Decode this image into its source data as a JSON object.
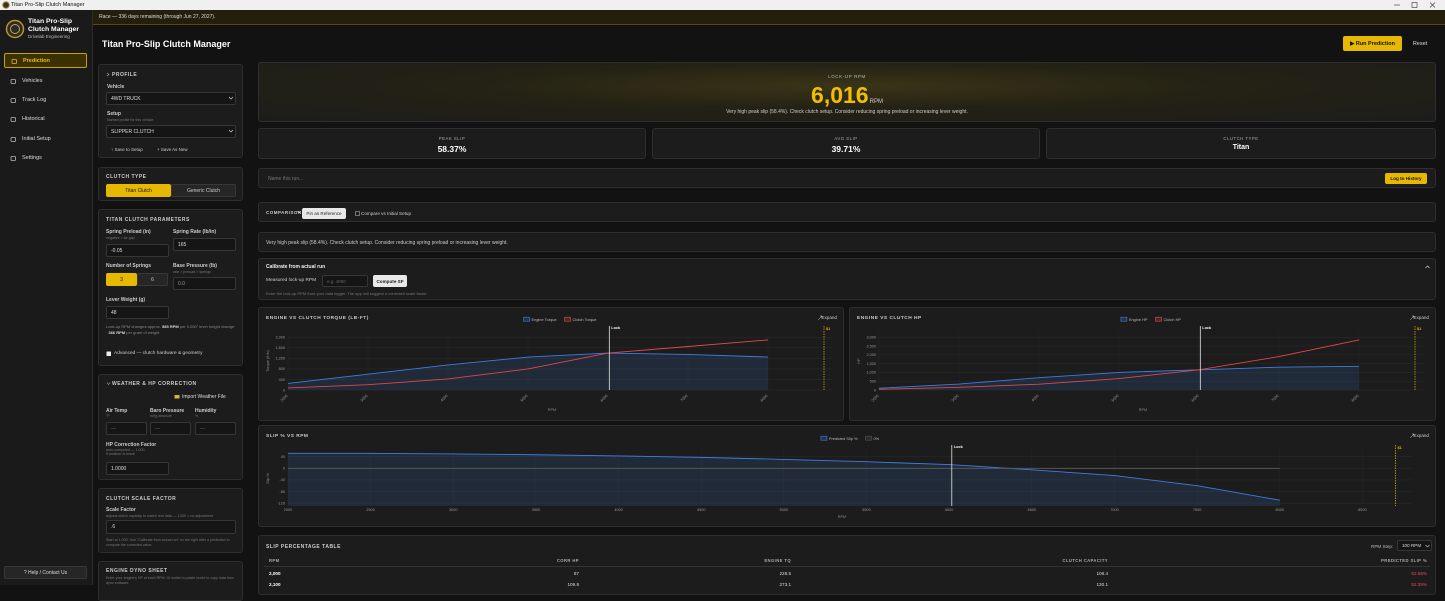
{
  "window_title": "Titan Pro-Slip Clutch Manager",
  "sidebar": {
    "app_name": "Titan Pro-Slip Clutch Manager",
    "subtitle": "Drivelab Engineering",
    "nav": [
      "Prediction",
      "Vehicles",
      "Track Log",
      "Historical",
      "Initial Setup",
      "Settings"
    ],
    "help": "? Help / Contact Us"
  },
  "banner": "Race — 336 days remaining (through Jun 27, 2027).",
  "header": {
    "title": "Titan Pro-Slip Clutch Manager",
    "run_button": "▶ Run Prediction",
    "reset_button": "Reset"
  },
  "profile": {
    "heading": "PROFILE",
    "vehicle_label": "Vehicle",
    "vehicle_value": "4WD TRUCK",
    "setup_label": "Setup",
    "setup_hint": "Named profile for this vehicle",
    "setup_value": "SLIPPER CLUTCH",
    "save_setup": "↑ Save to Setup",
    "save_as_new": "+ Save As New"
  },
  "clutch_type": {
    "heading": "CLUTCH TYPE",
    "options": [
      "Titan Clutch",
      "Generic Clutch"
    ]
  },
  "params": {
    "heading": "TITAN CLUTCH PARAMETERS",
    "spring_preload_label": "Spring Preload (in)",
    "spring_preload_hint": "negative = air gap",
    "spring_preload_value": "-0.05",
    "spring_rate_label": "Spring Rate (lb/in)",
    "spring_rate_value": "165",
    "springs_label": "Number of Springs",
    "springs_options": [
      "3",
      "6"
    ],
    "base_pressure_label": "Base Pressure (lb)",
    "base_pressure_hint": "rate × preload × springs",
    "base_pressure_value": "0.0",
    "lever_label": "Lever Weight (g)",
    "lever_value": "48",
    "note_1": "Lock-up RPM changes approx.",
    "note_bold_1": "585 RPM",
    "note_2": "per 0.050\" lever height change ·",
    "note_bold_2": "366 RPM",
    "note_3": "per gram of weight",
    "advanced": "Advanced — clutch hardware & geometry"
  },
  "weather": {
    "heading": "WEATHER & HP CORRECTION",
    "import": "Import Weather File",
    "air_label": "Air Temp",
    "air_hint": "°F",
    "baro_label": "Baro Pressure",
    "baro_hint": "inHg absolute",
    "humidity_label": "Humidity",
    "humidity_hint": "%",
    "placeholder": "—",
    "hp_label": "HP Correction Factor",
    "hp_hint": "auto-computed — 1.000 if weather is blank",
    "hp_value": "1.0000"
  },
  "scale": {
    "heading": "CLUTCH SCALE FACTOR",
    "label": "Scale Factor",
    "hint": "adjusts clutch capacity to match real data — 1.000 = no adjustment",
    "value": ".6",
    "note": "Start at 1.000. Use \"Calibrate from actual run\" on the right after a prediction to compute the corrected value."
  },
  "dyno": {
    "heading": "ENGINE DYNO SHEET",
    "note": "Enter your engine's HP at each RPM. Or switch to paste mode to copy data from dyno software."
  },
  "lockup": {
    "label": "LOCK-UP RPM",
    "value": "6,016",
    "unit": "RPM",
    "message": "Very high peak slip (58.4%). Check clutch setup. Consider reducing spring preload or increasing lever weight."
  },
  "stats": [
    {
      "label": "PEAK SLIP",
      "value": "58.37%"
    },
    {
      "label": "AVG SLIP",
      "value": "39.71%"
    },
    {
      "label": "CLUTCH TYPE",
      "value": "Titan"
    }
  ],
  "run_name": {
    "placeholder": "Name this run...",
    "button": "Log to History"
  },
  "comparison": {
    "label": "COMPARISON",
    "pin": "Pin as Reference",
    "compare": "Compare vs Initial Setup"
  },
  "warning": "Very high peak slip (58.4%). Check clutch setup. Consider reducing spring preload or increasing lever weight.",
  "calibrate": {
    "title": "Calibrate from actual run",
    "label": "Measured lock-up RPM",
    "placeholder": "e.g. 4850",
    "button": "Compute SF",
    "hint": "Enter the lock-up RPM from your data logger. The app will suggest a corrected scale factor."
  },
  "chart_data": [
    {
      "type": "line",
      "title": "ENGINE VS CLUTCH TORQUE (LB-FT)",
      "expand": "Expand",
      "x_label": "RPM",
      "y_label": "Torque (ft·lb)",
      "rotate_xticks": true,
      "x": [
        2000,
        3000,
        4000,
        5000,
        6000,
        7000,
        8000
      ],
      "series": [
        {
          "name": "Engine Torque",
          "color": "#3d7de0",
          "fill": true,
          "values": [
            250,
            600,
            950,
            1250,
            1400,
            1350,
            1250
          ]
        },
        {
          "name": "Clutch Torque",
          "color": "#e04848",
          "values": [
            80,
            200,
            420,
            800,
            1400,
            1650,
            1900
          ]
        }
      ],
      "xlim": [
        2000,
        8800
      ],
      "xticks": [
        2000,
        3000,
        4000,
        5000,
        6000,
        7000,
        8000
      ],
      "ylim": [
        0,
        2200
      ],
      "yticks": [
        0,
        400,
        800,
        {
          "value": 1200,
          "label": "1,200"
        },
        {
          "value": 1600,
          "label": "1,600"
        },
        {
          "value": 2000,
          "label": "2,000"
        }
      ],
      "lock_x": 6016,
      "lock_label": "Lock",
      "marker_x": 8700,
      "marker_label": "$1"
    },
    {
      "type": "line",
      "title": "ENGINE VS CLUTCH HP",
      "expand": "Expand",
      "x_label": "RPM",
      "y_label": "HP",
      "rotate_xticks": true,
      "x": [
        2000,
        3000,
        4000,
        5000,
        6000,
        7000,
        8000
      ],
      "series": [
        {
          "name": "Engine HP",
          "color": "#3d7de0",
          "fill": true,
          "values": [
            100,
            340,
            700,
            1000,
            1150,
            1300,
            1350
          ]
        },
        {
          "name": "Clutch HP",
          "color": "#e04848",
          "values": [
            40,
            150,
            330,
            650,
            1150,
            1900,
            2850
          ]
        }
      ],
      "xlim": [
        2000,
        8800
      ],
      "xticks": [
        2000,
        3000,
        4000,
        5000,
        6000,
        7000,
        8000
      ],
      "ylim": [
        0,
        3300
      ],
      "yticks": [
        0,
        500,
        {
          "value": 1000,
          "label": "1,000"
        },
        {
          "value": 1500,
          "label": "1,500"
        },
        {
          "value": 2000,
          "label": "2,000"
        },
        {
          "value": 2500,
          "label": "2,500"
        },
        {
          "value": 3000,
          "label": "3,000"
        }
      ],
      "lock_x": 6016,
      "lock_label": "Lock",
      "marker_x": 8700,
      "marker_label": "$1"
    },
    {
      "type": "line",
      "title": "SLIP % VS RPM",
      "expand": "Expand",
      "x_label": "RPM",
      "y_label": "Slip %",
      "rotate_xticks": false,
      "x": [
        2000,
        2500,
        3000,
        3500,
        4000,
        4500,
        5000,
        5500,
        6000,
        6500,
        7000,
        7500,
        8000
      ],
      "series": [
        {
          "name": "Predicted Slip %",
          "color": "#3d7de0",
          "fill": true,
          "values": [
            52,
            52,
            50,
            47,
            43,
            38,
            31,
            23,
            13,
            -5,
            -25,
            -60,
            -110
          ]
        },
        {
          "name": "0%",
          "color": "#555555",
          "values": [
            0,
            0,
            0,
            0,
            0,
            0,
            0,
            0,
            0,
            0,
            0,
            0,
            0
          ]
        }
      ],
      "xlim": [
        2000,
        8800
      ],
      "xticks": [
        2000,
        2500,
        3000,
        3500,
        4000,
        4500,
        5000,
        5500,
        6000,
        6500,
        7000,
        7500,
        8000,
        8500
      ],
      "ylim": [
        -130,
        60
      ],
      "yticks": [
        -120,
        -80,
        -40,
        0,
        40
      ],
      "lock_x": 6016,
      "lock_label": "Lock",
      "marker_x": 8700,
      "marker_label": "$1"
    }
  ],
  "table": {
    "title": "SLIP PERCENTAGE TABLE",
    "step_label": "RPM Step:",
    "step_value": "100 RPM",
    "columns": [
      "RPM",
      "CORR HP",
      "ENGINE TQ",
      "CLUTCH CAPACITY",
      "PREDICTED SLIP %"
    ],
    "rows": [
      [
        "2,000",
        "87",
        "228.5",
        "108.4",
        "52.56%"
      ],
      [
        "2,100",
        "109.8",
        "273.1",
        "130.1",
        "52.39%"
      ]
    ]
  }
}
